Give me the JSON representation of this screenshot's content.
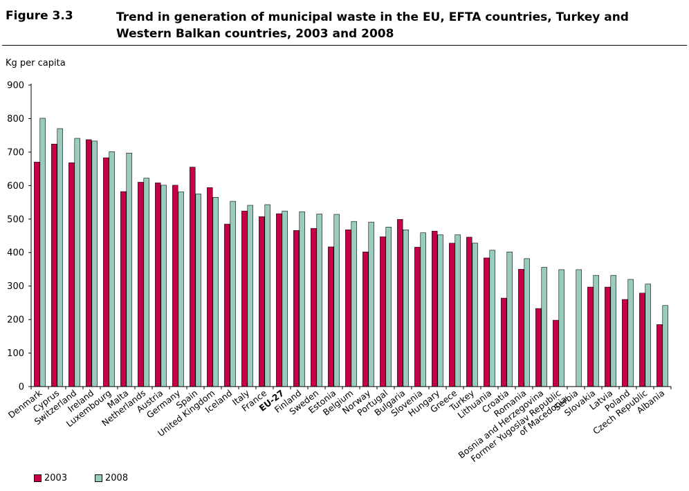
{
  "figure": {
    "label": "Figure 3.3",
    "title": "Trend in generation of municipal waste in the EU, EFTA countries, Turkey and Western Balkan countries, 2003 and 2008"
  },
  "chart_data": {
    "type": "bar",
    "ylabel": "Kg per capita",
    "ylim": [
      0,
      900
    ],
    "yticks": [
      0,
      100,
      200,
      300,
      400,
      500,
      600,
      700,
      800,
      900
    ],
    "grid": false,
    "legend_position": "bottom-left",
    "highlight_category": "EU-27",
    "categories": [
      "Denmark",
      "Cyprus",
      "Switzerland",
      "Ireland",
      "Luxembourg",
      "Malta",
      "Netherlands",
      "Austria",
      "Germany",
      "Spain",
      "United Kingdom",
      "Iceland",
      "Italy",
      "France",
      "EU-27",
      "Finland",
      "Sweden",
      "Estonia",
      "Belgium",
      "Norway",
      "Portugal",
      "Bulgaria",
      "Slovenia",
      "Hungary",
      "Greece",
      "Turkey",
      "Lithuania",
      "Croatia",
      "Romania",
      "Bosnia and Herzegovina",
      "Former Yugoslav Republic of Macedonia",
      "Serbia",
      "Slovakia",
      "Latvia",
      "Poland",
      "Czech Republic",
      "Albania"
    ],
    "series": [
      {
        "name": "2003",
        "color": "#c8004a",
        "values": [
          670,
          724,
          668,
          737,
          683,
          582,
          610,
          608,
          601,
          655,
          594,
          485,
          524,
          507,
          516,
          466,
          472,
          417,
          468,
          402,
          447,
          499,
          416,
          464,
          428,
          446,
          384,
          264,
          350,
          233,
          198,
          null,
          297,
          297,
          260,
          279,
          185
        ]
      },
      {
        "name": "2008",
        "color": "#99ccbf",
        "values": [
          801,
          770,
          741,
          733,
          701,
          697,
          622,
          601,
          581,
          575,
          565,
          553,
          541,
          543,
          524,
          522,
          515,
          514,
          493,
          491,
          476,
          468,
          459,
          453,
          453,
          428,
          407,
          402,
          382,
          356,
          349,
          349,
          332,
          332,
          320,
          306,
          242
        ]
      }
    ]
  }
}
